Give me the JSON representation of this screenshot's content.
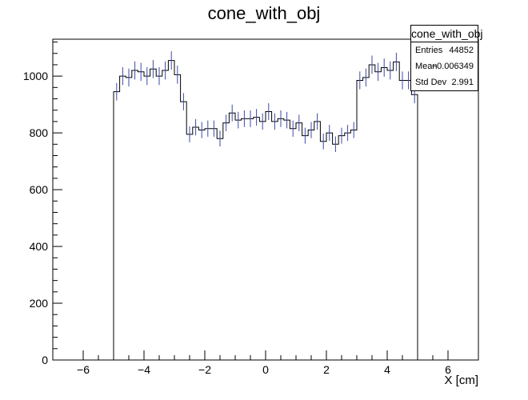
{
  "chart_data": {
    "type": "histogram",
    "title": "cone_with_obj",
    "xlabel": "X [cm]",
    "ylabel": "",
    "xlim": [
      -7,
      7
    ],
    "ylim": [
      0,
      1130
    ],
    "x_ticks": [
      -6,
      -4,
      -2,
      0,
      2,
      4,
      6
    ],
    "x_tick_labels": [
      "−6",
      "−4",
      "−2",
      "0",
      "2",
      "4",
      "6"
    ],
    "y_ticks": [
      0,
      200,
      400,
      600,
      800,
      1000
    ],
    "y_tick_labels": [
      "0",
      "200",
      "400",
      "600",
      "800",
      "1000"
    ],
    "grid": false,
    "line_color": "#000000",
    "error_color": "#3d4aa8",
    "bin_width": 0.2,
    "bins": [
      {
        "x": -5.0,
        "y": 945
      },
      {
        "x": -4.8,
        "y": 1000
      },
      {
        "x": -4.6,
        "y": 995
      },
      {
        "x": -4.4,
        "y": 1020
      },
      {
        "x": -4.2,
        "y": 1015
      },
      {
        "x": -4.0,
        "y": 1000
      },
      {
        "x": -3.8,
        "y": 1025
      },
      {
        "x": -3.6,
        "y": 1000
      },
      {
        "x": -3.4,
        "y": 1020
      },
      {
        "x": -3.2,
        "y": 1055
      },
      {
        "x": -3.0,
        "y": 1005
      },
      {
        "x": -2.8,
        "y": 910
      },
      {
        "x": -2.6,
        "y": 795
      },
      {
        "x": -2.4,
        "y": 820
      },
      {
        "x": -2.2,
        "y": 810
      },
      {
        "x": -2.0,
        "y": 815
      },
      {
        "x": -1.8,
        "y": 815
      },
      {
        "x": -1.6,
        "y": 780
      },
      {
        "x": -1.4,
        "y": 835
      },
      {
        "x": -1.2,
        "y": 870
      },
      {
        "x": -1.0,
        "y": 845
      },
      {
        "x": -0.8,
        "y": 850
      },
      {
        "x": -0.6,
        "y": 850
      },
      {
        "x": -0.4,
        "y": 855
      },
      {
        "x": -0.2,
        "y": 840
      },
      {
        "x": 0.0,
        "y": 875
      },
      {
        "x": 0.2,
        "y": 840
      },
      {
        "x": 0.4,
        "y": 850
      },
      {
        "x": 0.6,
        "y": 845
      },
      {
        "x": 0.8,
        "y": 815
      },
      {
        "x": 1.0,
        "y": 835
      },
      {
        "x": 1.2,
        "y": 790
      },
      {
        "x": 1.4,
        "y": 810
      },
      {
        "x": 1.6,
        "y": 840
      },
      {
        "x": 1.8,
        "y": 770
      },
      {
        "x": 2.0,
        "y": 800
      },
      {
        "x": 2.2,
        "y": 760
      },
      {
        "x": 2.4,
        "y": 790
      },
      {
        "x": 2.6,
        "y": 800
      },
      {
        "x": 2.8,
        "y": 810
      },
      {
        "x": 3.0,
        "y": 985
      },
      {
        "x": 3.2,
        "y": 995
      },
      {
        "x": 3.4,
        "y": 1040
      },
      {
        "x": 3.6,
        "y": 1015
      },
      {
        "x": 3.8,
        "y": 1030
      },
      {
        "x": 4.0,
        "y": 1020
      },
      {
        "x": 4.2,
        "y": 1050
      },
      {
        "x": 4.4,
        "y": 985
      },
      {
        "x": 4.6,
        "y": 985
      },
      {
        "x": 4.8,
        "y": 935
      }
    ],
    "stats": {
      "title": "cone_with_obj",
      "rows": [
        {
          "label": "Entries",
          "value": "44852"
        },
        {
          "label": "Mean",
          "value": "−0.006349"
        },
        {
          "label": "Std Dev",
          "value": "2.991"
        }
      ]
    }
  }
}
